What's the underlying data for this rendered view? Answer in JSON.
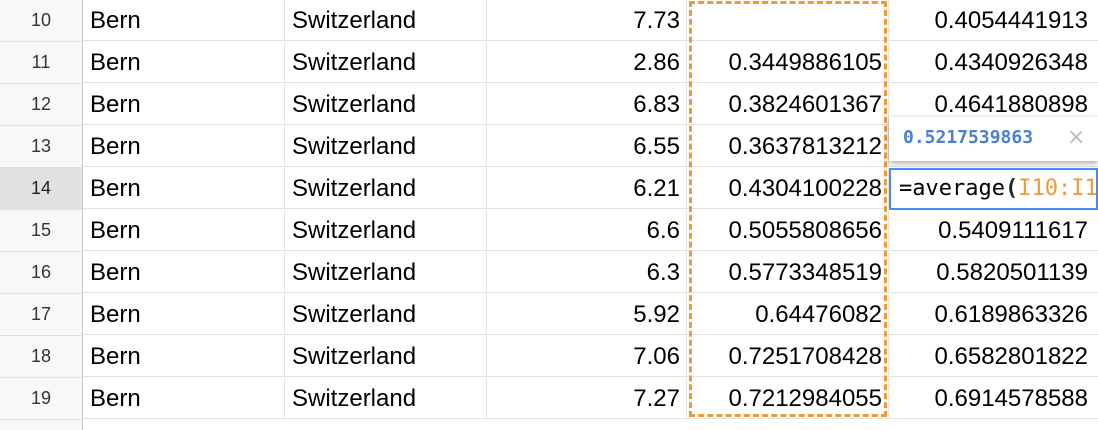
{
  "rows": [
    {
      "num": "10",
      "city": "Bern",
      "country": "Switzerland",
      "value": "7.73",
      "colH": "",
      "colI": "0.4054441913"
    },
    {
      "num": "11",
      "city": "Bern",
      "country": "Switzerland",
      "value": "2.86",
      "colH": "0.3449886105",
      "colI": "0.4340926348"
    },
    {
      "num": "12",
      "city": "Bern",
      "country": "Switzerland",
      "value": "6.83",
      "colH": "0.3824601367",
      "colI": "0.4641880898"
    },
    {
      "num": "13",
      "city": "Bern",
      "country": "Switzerland",
      "value": "6.55",
      "colH": "0.3637813212",
      "colI": ""
    },
    {
      "num": "14",
      "city": "Bern",
      "country": "Switzerland",
      "value": "6.21",
      "colH": "0.4304100228",
      "colI": ""
    },
    {
      "num": "15",
      "city": "Bern",
      "country": "Switzerland",
      "value": "6.6",
      "colH": "0.5055808656",
      "colI": "0.5409111617"
    },
    {
      "num": "16",
      "city": "Bern",
      "country": "Switzerland",
      "value": "6.3",
      "colH": "0.5773348519",
      "colI": "0.5820501139"
    },
    {
      "num": "17",
      "city": "Bern",
      "country": "Switzerland",
      "value": "5.92",
      "colH": "0.64476082",
      "colI": "0.6189863326"
    },
    {
      "num": "18",
      "city": "Bern",
      "country": "Switzerland",
      "value": "7.06",
      "colH": "0.7251708428",
      "colI": "0.6582801822"
    },
    {
      "num": "19",
      "city": "Bern",
      "country": "Switzerland",
      "value": "7.27",
      "colH": "0.7212984055",
      "colI": "0.6914578588"
    }
  ],
  "active_row": "14",
  "tooltip": {
    "value": "0.5217539863",
    "close": "×"
  },
  "formula": {
    "func": "=average",
    "open_paren": "(",
    "range": "I10:I1"
  },
  "colors": {
    "range_highlight": "#f09a37",
    "formula_border": "#4a8af4",
    "tooltip_value": "#4a7fd1"
  }
}
